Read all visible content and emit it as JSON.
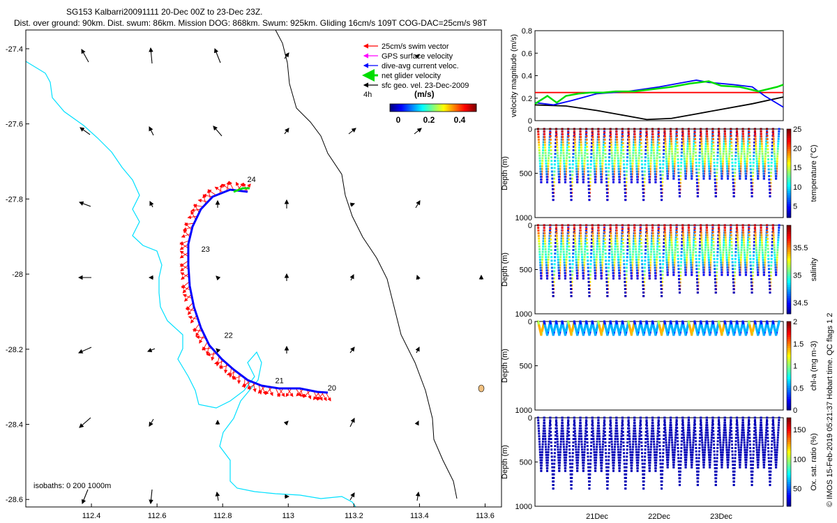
{
  "header": {
    "title_line1": "SG153 Kalbarri20091111 20-Dec 00Z to 23-Dec 23Z.",
    "title_line2": "Dist. over ground: 90km. Dist. swum: 86km. Mission DOG: 868km. Swum: 925km. Gliding 16cm/s 109T COG-DAC=25cm/s 98T"
  },
  "legend": {
    "entries": [
      {
        "label": "25cm/s swim vector",
        "color": "#ff0000"
      },
      {
        "label": "GPS surface velocity",
        "color": "#ff00ff"
      },
      {
        "label": "dive-avg current veloc.",
        "color": "#0000ff"
      },
      {
        "label": "net glider velocity",
        "color": "#00dd00"
      },
      {
        "label": "sfc geo. vel. 23-Dec-2009",
        "color": "#000000"
      }
    ],
    "interval": "4h",
    "colorbar_title": "(m/s)",
    "colorbar_ticks": [
      "0",
      "0.2",
      "0.4"
    ]
  },
  "map_note": "isobaths: 0   200  1000m",
  "credit": "© IMOS 15-Feb-2019 05:21:37 Hobart time. QC flags 1  2",
  "colors": {
    "coast": "#00e0ff",
    "isobath": "#000000",
    "track": "#0000ff",
    "swim": "#ff0000",
    "net": "#00dd00"
  },
  "chart_data": [
    {
      "type": "scatter",
      "name": "map",
      "xlim": [
        112.2,
        113.65
      ],
      "ylim": [
        -28.62,
        -27.35
      ],
      "xticks": [
        112.4,
        112.6,
        112.8,
        113,
        113.2,
        113.4,
        113.6
      ],
      "xtick_labels": [
        "112.4",
        "112.6",
        "112.8",
        "113",
        "113.2",
        "113.4",
        "113.6"
      ],
      "yticks": [
        -27.4,
        -27.6,
        -27.8,
        -28,
        -28.2,
        -28.4,
        -28.6
      ],
      "ytick_labels": [
        "-27.4",
        "-27.6",
        "-27.8",
        "-28",
        "-28.2",
        "-28.4",
        "-28.6"
      ],
      "day_labels": [
        {
          "text": "24",
          "lon": 112.875,
          "lat": -27.755
        },
        {
          "text": "23",
          "lon": 112.735,
          "lat": -27.94
        },
        {
          "text": "22",
          "lon": 112.805,
          "lat": -28.17
        },
        {
          "text": "21",
          "lon": 112.96,
          "lat": -28.29
        },
        {
          "text": "20",
          "lon": 113.12,
          "lat": -28.31
        }
      ]
    },
    {
      "type": "line",
      "name": "velocity",
      "xlabel": "",
      "ylabel": "velocity magnitude (m/s)",
      "xlim": [
        20.0,
        24.0
      ],
      "ylim": [
        0,
        0.8
      ],
      "yticks": [
        "0",
        "0.2",
        "0.4",
        "0.6",
        "0.8"
      ],
      "series": [
        {
          "color": "#ff0000",
          "x": [
            20.0,
            24.0
          ],
          "y": [
            0.25,
            0.25
          ]
        },
        {
          "color": "#000000",
          "x": [
            20.0,
            20.5,
            21.0,
            21.5,
            21.8,
            22.2,
            22.6,
            23.0,
            23.5,
            24.0
          ],
          "y": [
            0.14,
            0.13,
            0.09,
            0.04,
            0.01,
            0.02,
            0.06,
            0.1,
            0.15,
            0.21
          ]
        },
        {
          "color": "#0000ff",
          "x": [
            20.0,
            20.3,
            20.6,
            21.0,
            21.5,
            22.0,
            22.4,
            22.6,
            22.8,
            23.2,
            23.5,
            23.7,
            24.0
          ],
          "y": [
            0.16,
            0.14,
            0.18,
            0.24,
            0.26,
            0.3,
            0.34,
            0.36,
            0.34,
            0.32,
            0.3,
            0.22,
            0.12
          ]
        },
        {
          "color": "#00dd00",
          "x": [
            20.0,
            20.2,
            20.35,
            20.5,
            20.7,
            20.9,
            21.1,
            21.3,
            21.6,
            21.9,
            22.2,
            22.5,
            22.8,
            23.0,
            23.3,
            23.6,
            23.9,
            24.0
          ],
          "y": [
            0.15,
            0.22,
            0.16,
            0.22,
            0.24,
            0.25,
            0.25,
            0.26,
            0.26,
            0.28,
            0.3,
            0.33,
            0.35,
            0.31,
            0.3,
            0.26,
            0.3,
            0.32
          ]
        }
      ]
    },
    {
      "type": "scatter",
      "name": "temperature",
      "ylabel": "Depth (m)",
      "clabel": "temperature (°C)",
      "ylim": [
        0,
        1000
      ],
      "yticks": [
        "0",
        "500",
        "1000"
      ],
      "cticks": [
        "5",
        "10",
        "15",
        "20",
        "25"
      ],
      "crange": [
        2,
        25
      ],
      "surface": 25,
      "bottom": 4
    },
    {
      "type": "scatter",
      "name": "salinity",
      "ylabel": "Depth (m)",
      "clabel": "salinity",
      "ylim": [
        0,
        1000
      ],
      "yticks": [
        "0",
        "500",
        "1000"
      ],
      "cticks": [
        "34.5",
        "35",
        "35.5"
      ],
      "crange": [
        34.3,
        35.9
      ],
      "surface": 35.8,
      "bottom": 34.4
    },
    {
      "type": "scatter",
      "name": "chla",
      "ylabel": "Depth (m)",
      "clabel": "chl-a (mg m-3)",
      "ylim": [
        0,
        1000
      ],
      "yticks": [
        "0",
        "500",
        "1000"
      ],
      "cticks": [
        "0",
        "0.5",
        "1",
        "1.5",
        "2"
      ],
      "crange": [
        0,
        2
      ],
      "surface": 0.6,
      "bottom": 0.2
    },
    {
      "type": "scatter",
      "name": "oxygen",
      "ylabel": "Depth (m)",
      "clabel": "Ox. sat. ratio (%)",
      "ylim": [
        0,
        1000
      ],
      "yticks": [
        "0",
        "500",
        "1000"
      ],
      "cticks": [
        "50",
        "100",
        "150"
      ],
      "crange": [
        20,
        170
      ],
      "surface": 30,
      "bottom": 30,
      "xtick_labels": [
        "21Dec",
        "22Dec",
        "23Dec"
      ],
      "xticks": [
        21,
        22,
        23
      ]
    }
  ]
}
